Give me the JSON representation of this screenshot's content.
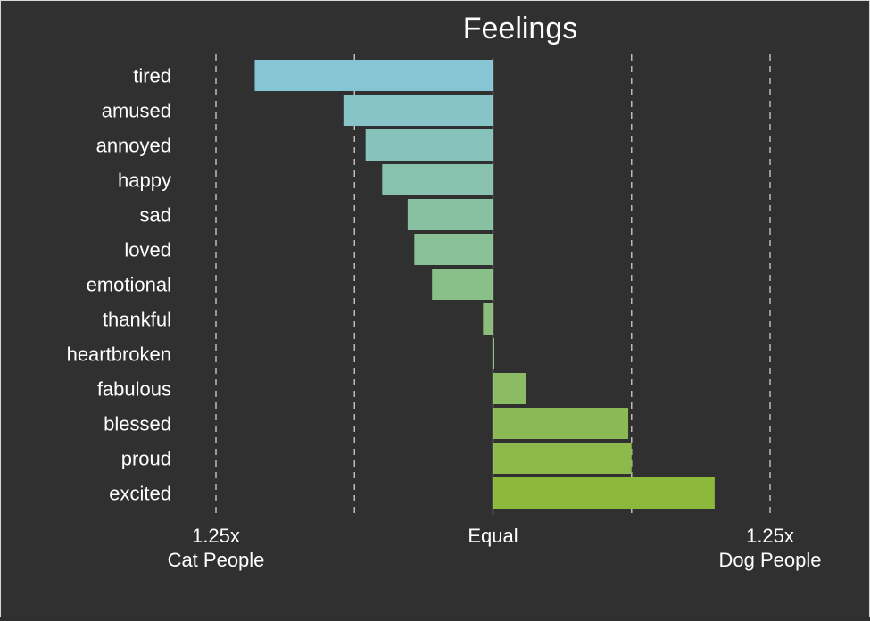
{
  "chart_data": {
    "type": "bar",
    "orientation": "horizontal",
    "title": "Feelings",
    "categories": [
      "tired",
      "amused",
      "annoyed",
      "happy",
      "sad",
      "loved",
      "emotional",
      "thankful",
      "heartbroken",
      "fabulous",
      "blessed",
      "proud",
      "excited"
    ],
    "values": [
      -0.215,
      -0.135,
      -0.115,
      -0.1,
      -0.077,
      -0.071,
      -0.055,
      -0.009,
      0.001,
      0.03,
      0.122,
      0.125,
      0.2
    ],
    "xlim": [
      -0.25,
      0.25
    ],
    "ticks": [
      {
        "value": -0.25,
        "line1": "1.25x",
        "line2": "Cat People"
      },
      {
        "value": 0,
        "line1": "Equal",
        "line2": ""
      },
      {
        "value": 0.25,
        "line1": "1.25x",
        "line2": "Dog People"
      }
    ],
    "grid_values": [
      -0.25,
      -0.125,
      0.125,
      0.25
    ],
    "grid": true,
    "legend": "none",
    "colors": {
      "start": "#86c5d4",
      "end": "#8cb83c",
      "background": "#303030",
      "text": "#ffffff",
      "grid": "#bbbbbb"
    }
  }
}
